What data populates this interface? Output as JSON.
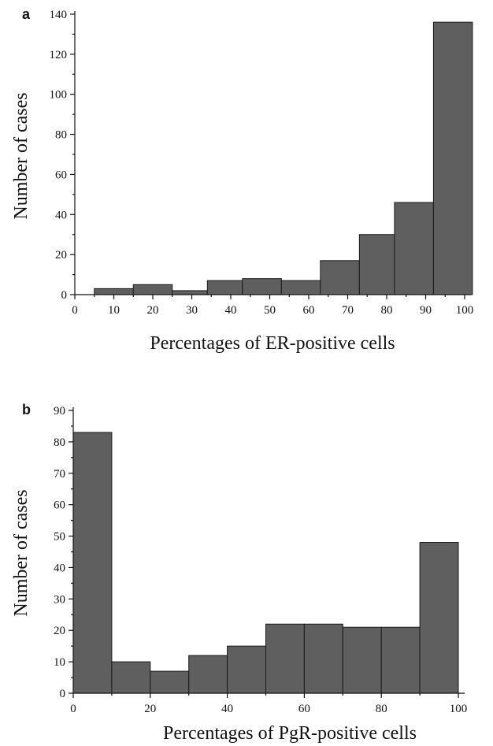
{
  "chart_data": [
    {
      "type": "bar",
      "panel_label": "a",
      "xlabel": "Percentages of ER-positive cells",
      "ylabel": "Number of cases",
      "xlim": [
        0,
        100
      ],
      "ylim": [
        0,
        140
      ],
      "xticks": [
        0,
        10,
        20,
        30,
        40,
        50,
        60,
        70,
        80,
        90,
        100
      ],
      "yticks": [
        0,
        20,
        40,
        60,
        80,
        100,
        120,
        140
      ],
      "bins": [
        {
          "x0": 5,
          "x1": 15,
          "value": 3
        },
        {
          "x0": 15,
          "x1": 25,
          "value": 5
        },
        {
          "x0": 25,
          "x1": 34,
          "value": 2
        },
        {
          "x0": 34,
          "x1": 43,
          "value": 7
        },
        {
          "x0": 43,
          "x1": 53,
          "value": 8
        },
        {
          "x0": 53,
          "x1": 63,
          "value": 7
        },
        {
          "x0": 63,
          "x1": 73,
          "value": 17
        },
        {
          "x0": 73,
          "x1": 82,
          "value": 30
        },
        {
          "x0": 82,
          "x1": 92,
          "value": 46
        },
        {
          "x0": 92,
          "x1": 102,
          "value": 136
        }
      ],
      "bar_color": "#5f5f5f"
    },
    {
      "type": "bar",
      "panel_label": "b",
      "xlabel": "Percentages of PgR-positive cells",
      "ylabel": "Number of cases",
      "xlim": [
        0,
        100
      ],
      "ylim": [
        0,
        90
      ],
      "xticks": [
        0,
        20,
        40,
        60,
        80,
        100
      ],
      "yticks": [
        0,
        10,
        20,
        30,
        40,
        50,
        60,
        70,
        80,
        90
      ],
      "bins": [
        {
          "x0": 0,
          "x1": 10,
          "value": 83
        },
        {
          "x0": 10,
          "x1": 20,
          "value": 10
        },
        {
          "x0": 20,
          "x1": 30,
          "value": 7
        },
        {
          "x0": 30,
          "x1": 40,
          "value": 12
        },
        {
          "x0": 40,
          "x1": 50,
          "value": 15
        },
        {
          "x0": 50,
          "x1": 60,
          "value": 22
        },
        {
          "x0": 60,
          "x1": 70,
          "value": 22
        },
        {
          "x0": 70,
          "x1": 80,
          "value": 21
        },
        {
          "x0": 80,
          "x1": 90,
          "value": 21
        },
        {
          "x0": 90,
          "x1": 100,
          "value": 48
        }
      ],
      "bar_color": "#5f5f5f"
    }
  ]
}
